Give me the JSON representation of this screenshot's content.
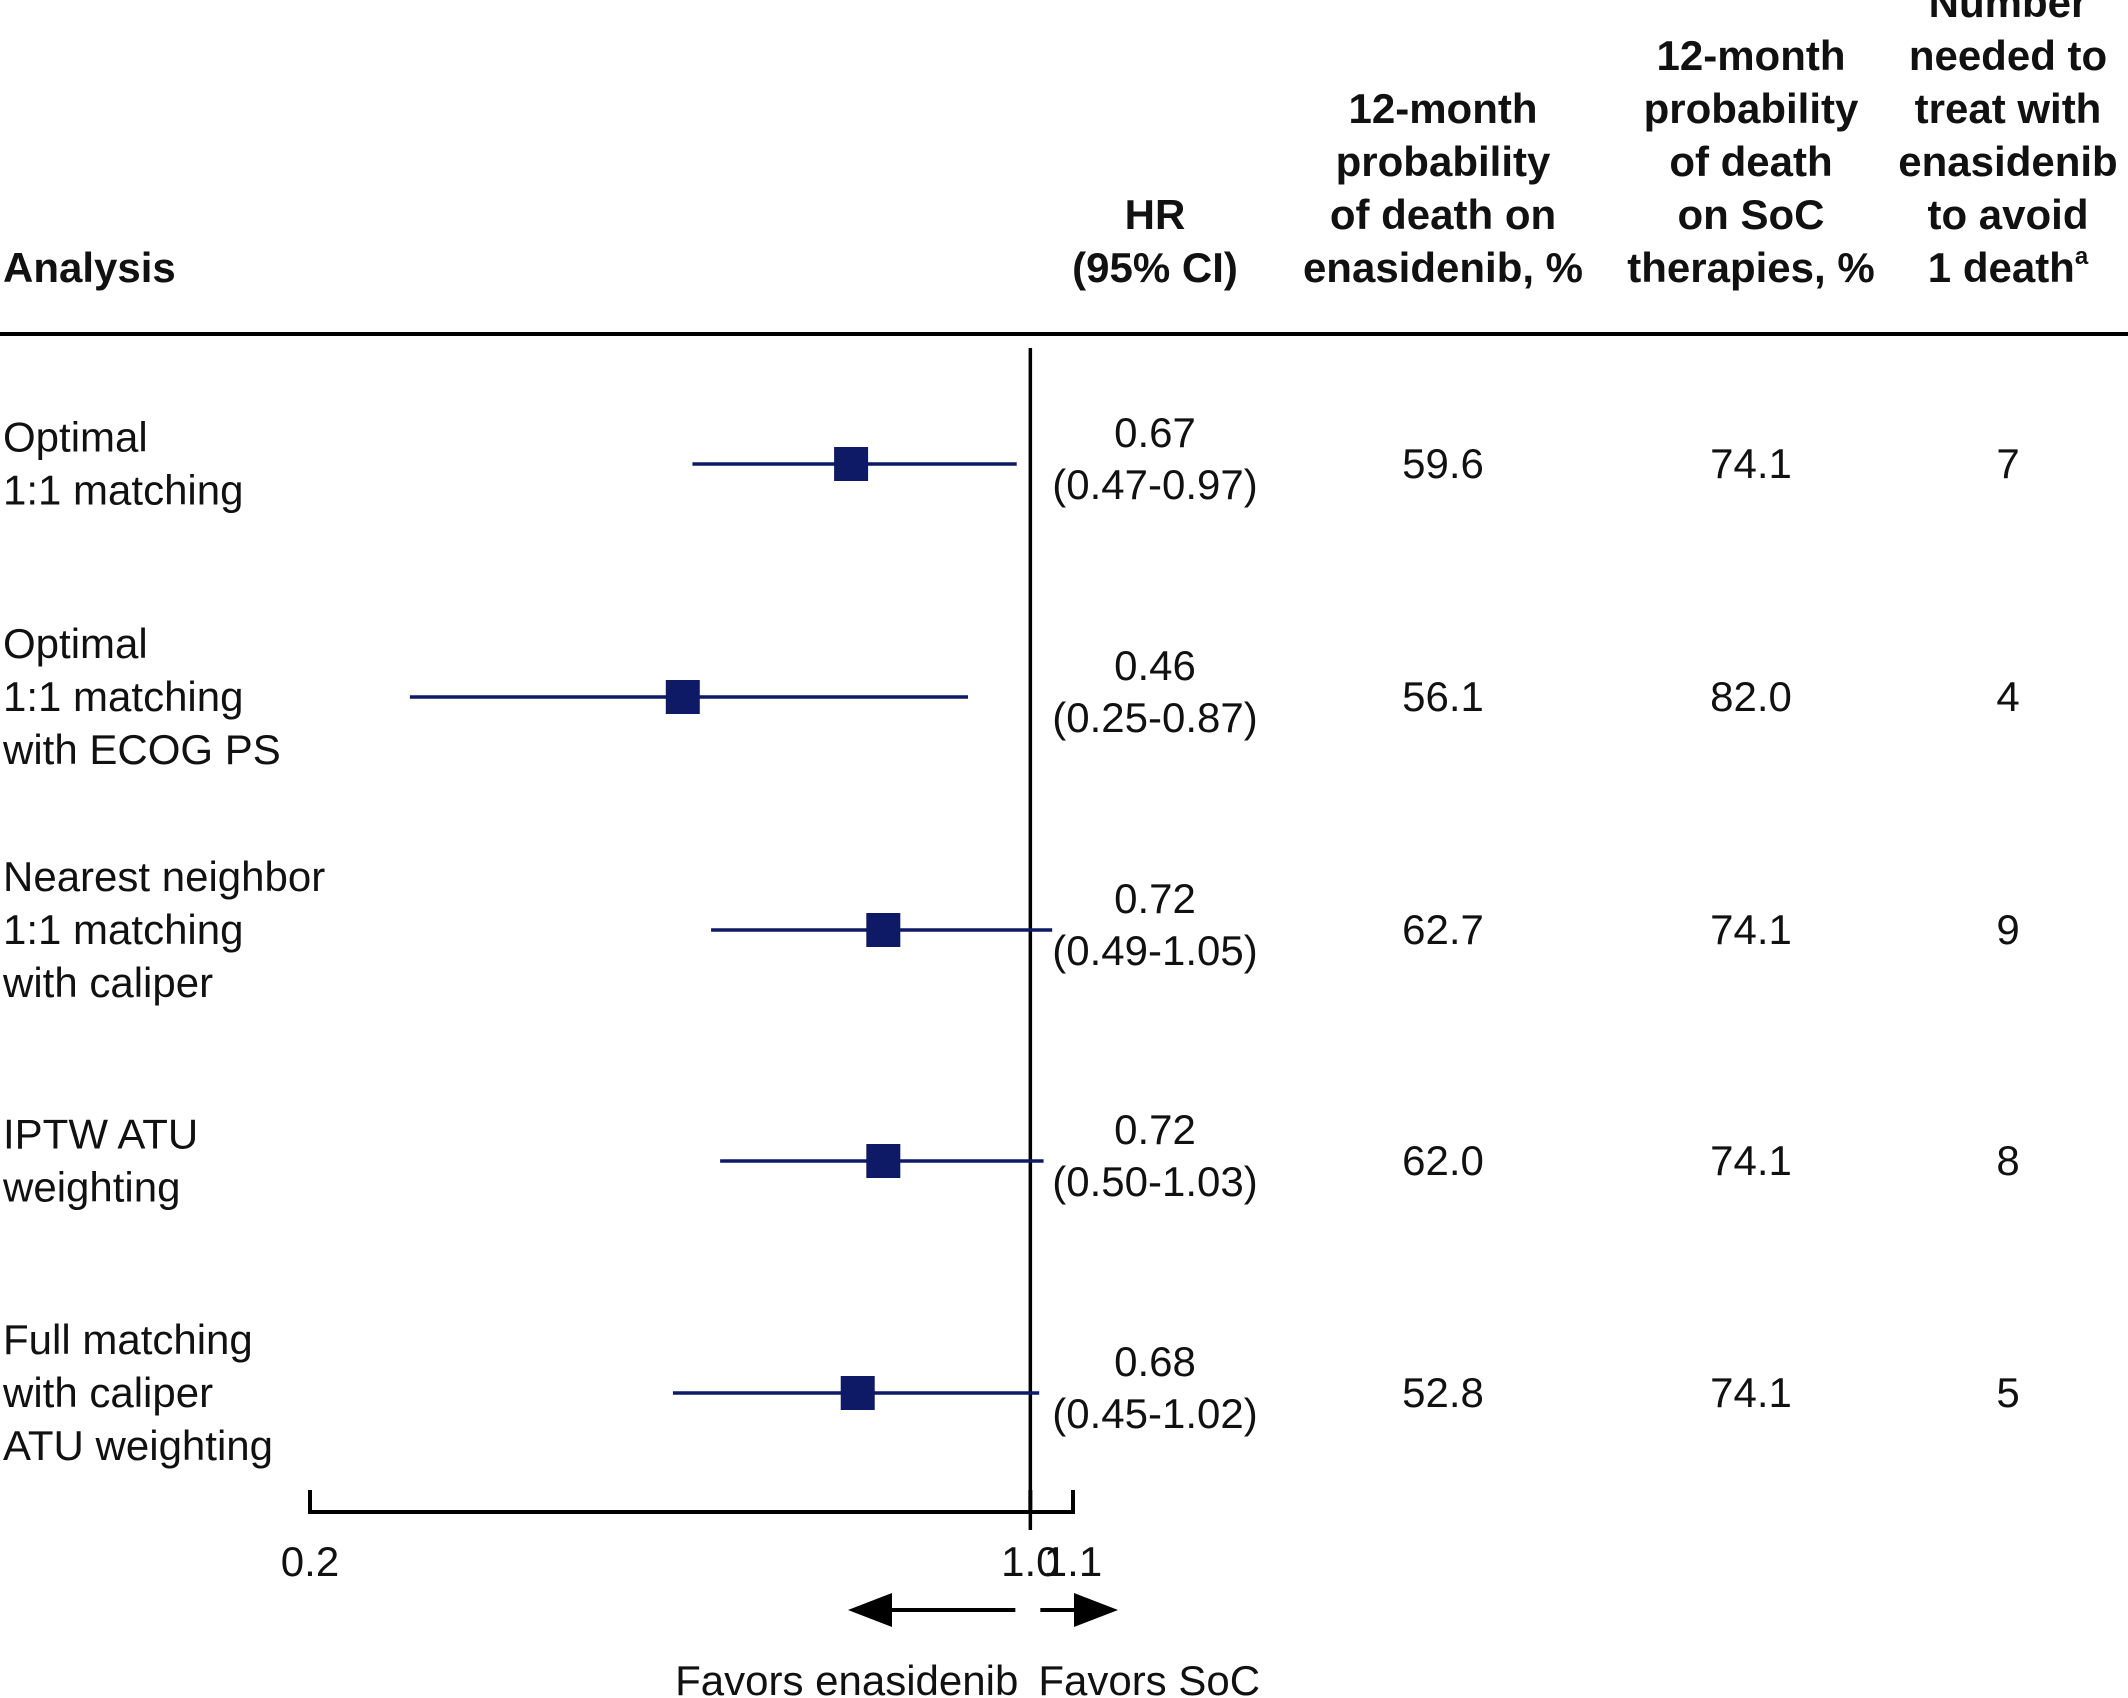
{
  "headers": {
    "analysis": "Analysis",
    "hr": [
      "HR",
      "(95% CI)"
    ],
    "prob_enasidenib": [
      "12-month",
      "probability",
      "of death on",
      "enasidenib, %"
    ],
    "prob_soc": [
      "12-month",
      "probability",
      "of death",
      "on SoC",
      "therapies, %"
    ],
    "nnt": [
      "Number",
      "needed to",
      "treat with",
      "enasidenib",
      "to avoid",
      "1 death"
    ],
    "nnt_superscript": "a"
  },
  "footer": {
    "favors_left": "Favors enasidenib",
    "favors_right": "Favors SoC"
  },
  "colors": {
    "marker": "#0f1a66",
    "ci_line": "#0f1a66",
    "axis": "#000000",
    "text": "#111111"
  },
  "chart_data": {
    "type": "forest",
    "xscale": "log",
    "xlim": [
      0.2,
      1.1
    ],
    "reference_line": 1.0,
    "xticks": [
      0.2,
      1.0,
      1.1
    ],
    "xtick_labels": [
      "0.2",
      "1.0",
      "1.1"
    ],
    "rows": [
      {
        "label": [
          "Optimal",
          "1:1 matching"
        ],
        "hr": 0.67,
        "lo": 0.47,
        "hi": 0.97,
        "hr_text": "0.67",
        "ci_text": "(0.47-0.97)",
        "prob_enasidenib": "59.6",
        "prob_soc": "74.1",
        "nnt": "7"
      },
      {
        "label": [
          "Optimal",
          "1:1 matching",
          "with ECOG PS"
        ],
        "hr": 0.46,
        "lo": 0.25,
        "hi": 0.87,
        "hr_text": "0.46",
        "ci_text": "(0.25-0.87)",
        "prob_enasidenib": "56.1",
        "prob_soc": "82.0",
        "nnt": "4"
      },
      {
        "label": [
          "Nearest neighbor",
          "1:1 matching",
          "with caliper"
        ],
        "hr": 0.72,
        "lo": 0.49,
        "hi": 1.05,
        "hr_text": "0.72",
        "ci_text": "(0.49-1.05)",
        "prob_enasidenib": "62.7",
        "prob_soc": "74.1",
        "nnt": "9"
      },
      {
        "label": [
          "IPTW ATU",
          "weighting"
        ],
        "hr": 0.72,
        "lo": 0.5,
        "hi": 1.03,
        "hr_text": "0.72",
        "ci_text": "(0.50-1.03)",
        "prob_enasidenib": "62.0",
        "prob_soc": "74.1",
        "nnt": "8"
      },
      {
        "label": [
          "Full matching",
          "with caliper",
          "ATU weighting"
        ],
        "hr": 0.68,
        "lo": 0.45,
        "hi": 1.02,
        "hr_text": "0.68",
        "ci_text": "(0.45-1.02)",
        "prob_enasidenib": "52.8",
        "prob_soc": "74.1",
        "nnt": "5"
      }
    ]
  }
}
